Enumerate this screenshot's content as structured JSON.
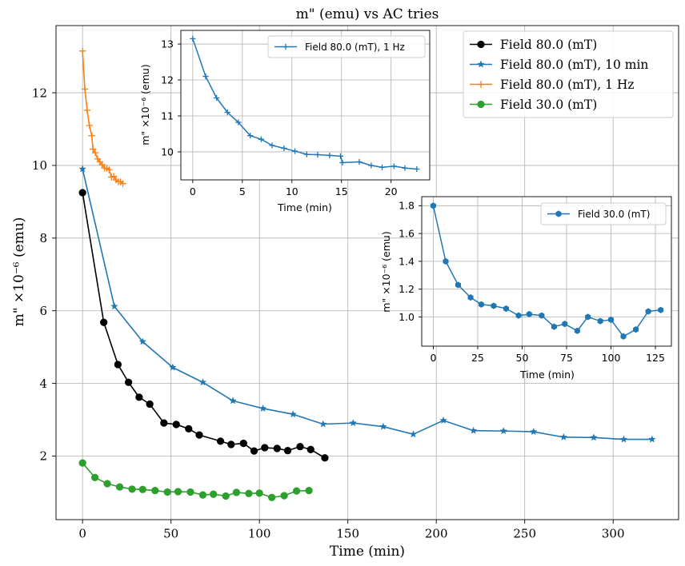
{
  "colors": {
    "black": "#000000",
    "blue": "#1f77b4",
    "orange": "#ff7f0e",
    "green": "#2ca02c",
    "grid": "#b0b0b0"
  },
  "chart_data": [
    {
      "type": "line",
      "title": "m\" (emu) vs  AC tries",
      "xlabel": "Time (min)",
      "ylabel": "m\" ×10⁻⁶ (emu)",
      "xlim": [
        -15,
        337
      ],
      "ylim": [
        0.25,
        13.85
      ],
      "xticks": [
        0,
        50,
        100,
        150,
        200,
        250,
        300
      ],
      "yticks": [
        2,
        4,
        6,
        8,
        10,
        12
      ],
      "grid": true,
      "legend_position": "top-right",
      "series": [
        {
          "name": "Field 80.0 (mT)",
          "color": "#000000",
          "marker": "circle",
          "x": [
            0,
            12,
            20,
            26,
            32,
            38,
            46,
            53,
            60,
            66,
            78,
            84,
            91,
            97,
            103,
            110,
            116,
            123,
            129,
            137
          ],
          "y": [
            9.25,
            5.68,
            4.52,
            4.03,
            3.62,
            3.43,
            2.91,
            2.87,
            2.75,
            2.58,
            2.41,
            2.32,
            2.35,
            2.14,
            2.23,
            2.21,
            2.15,
            2.26,
            2.18,
            1.95
          ]
        },
        {
          "name": "Field 80.0 (mT), 10 min",
          "color": "#1f77b4",
          "marker": "star",
          "x": [
            0,
            18,
            34,
            51,
            68,
            85,
            102,
            119,
            136,
            153,
            170,
            187,
            204,
            221,
            238,
            255,
            272,
            289,
            306,
            322
          ],
          "y": [
            9.9,
            6.12,
            5.15,
            4.44,
            4.03,
            3.52,
            3.31,
            3.15,
            2.88,
            2.91,
            2.81,
            2.6,
            2.98,
            2.7,
            2.69,
            2.67,
            2.52,
            2.51,
            2.46,
            2.46
          ]
        },
        {
          "name": "Field 80.0 (mT), 1 Hz",
          "color": "#ff7f0e",
          "marker": "plus",
          "x": [
            0,
            1.3,
            2.6,
            3.9,
            5.2,
            5.9,
            7.2,
            8.5,
            9.8,
            11.1,
            12.4,
            13.7,
            15.0,
            16.3,
            17.6,
            18.9,
            20.2,
            21.5,
            22.8
          ],
          "y": [
            13.15,
            12.1,
            11.52,
            11.1,
            10.82,
            10.45,
            10.35,
            10.18,
            10.1,
            10.02,
            9.93,
            9.92,
            9.88,
            9.68,
            9.7,
            9.6,
            9.55,
            9.55,
            9.5
          ]
        },
        {
          "name": "Field 30.0 (mT)",
          "color": "#2ca02c",
          "marker": "circle",
          "x": [
            0,
            7,
            14,
            21,
            28,
            34,
            41,
            48,
            54,
            61,
            68,
            74,
            81,
            87,
            94,
            100,
            107,
            114,
            121,
            128
          ],
          "y": [
            1.81,
            1.41,
            1.24,
            1.15,
            1.09,
            1.08,
            1.05,
            1.01,
            1.02,
            1.01,
            0.93,
            0.95,
            0.9,
            1.0,
            0.97,
            0.98,
            0.86,
            0.91,
            1.04,
            1.05
          ]
        }
      ]
    },
    {
      "type": "line",
      "title": "",
      "xlabel": "Time (min)",
      "ylabel": "m\" ×10⁻⁶ (emu)",
      "xlim": [
        -1.2,
        23.9
      ],
      "ylim": [
        9.22,
        13.38
      ],
      "xticks": [
        0,
        5,
        10,
        15,
        20
      ],
      "yticks": [
        10,
        11,
        12,
        13
      ],
      "grid": true,
      "legend_position": "top-right",
      "series": [
        {
          "name": "Field 80.0 (mT), 1 Hz",
          "color": "#1f77b4",
          "marker": "plus",
          "x": [
            0,
            1.3,
            2.4,
            3.5,
            4.6,
            5.8,
            6.9,
            8.0,
            9.2,
            10.3,
            11.5,
            12.6,
            13.8,
            14.9,
            15.1,
            16.8,
            18.0,
            19.1,
            20.3,
            21.4,
            22.6
          ],
          "y": [
            13.15,
            12.1,
            11.5,
            11.1,
            10.82,
            10.45,
            10.35,
            10.18,
            10.1,
            10.02,
            9.93,
            9.92,
            9.9,
            9.88,
            9.7,
            9.72,
            9.62,
            9.57,
            9.6,
            9.55,
            9.52
          ]
        }
      ]
    },
    {
      "type": "line",
      "title": "",
      "xlabel": "Time (min)",
      "ylabel": "m\" ×10⁻⁶ (emu)",
      "xlim": [
        -6.5,
        134
      ],
      "ylim": [
        0.79,
        1.865
      ],
      "xticks": [
        0,
        25,
        50,
        75,
        100,
        125
      ],
      "yticks": [
        1.0,
        1.2,
        1.4,
        1.6,
        1.8
      ],
      "ytick_labels": [
        "1.0",
        "1.2",
        "1.4",
        "1.6",
        "1.8"
      ],
      "grid": true,
      "legend_position": "top-right",
      "series": [
        {
          "name": "Field 30.0 (mT)",
          "color": "#1f77b4",
          "marker": "hexagon",
          "x": [
            0,
            7,
            14,
            21,
            27,
            34,
            41,
            48,
            54,
            61,
            68,
            74,
            81,
            87,
            94,
            100,
            107,
            114,
            121,
            128
          ],
          "y": [
            1.8,
            1.4,
            1.23,
            1.14,
            1.09,
            1.08,
            1.06,
            1.01,
            1.02,
            1.01,
            0.93,
            0.95,
            0.9,
            1.0,
            0.97,
            0.98,
            0.86,
            0.91,
            1.04,
            1.05
          ]
        }
      ]
    }
  ]
}
